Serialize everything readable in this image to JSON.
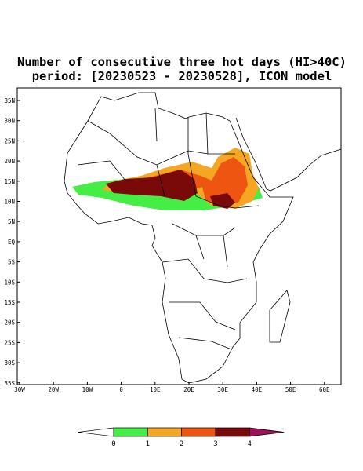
{
  "title": {
    "line1": "Number of consecutive three hot days (HI>40C)",
    "line2": "period: [20230523 - 20230528], ICON model"
  },
  "map": {
    "lat_labels": [
      "35N",
      "30N",
      "25N",
      "20N",
      "15N",
      "10N",
      "5N",
      "EQ",
      "5S",
      "10S",
      "15S",
      "20S",
      "25S",
      "30S",
      "35S"
    ],
    "lon_labels": [
      "30W",
      "20W",
      "10W",
      "0",
      "10E",
      "20E",
      "30E",
      "40E",
      "50E",
      "60E"
    ]
  },
  "colorbar": {
    "levels": [
      0,
      1,
      2,
      3,
      4
    ],
    "colors": [
      "#ffffff",
      "#44ee44",
      "#f5a623",
      "#ee5511",
      "#7a0a0a",
      "#a0105a"
    ]
  }
}
